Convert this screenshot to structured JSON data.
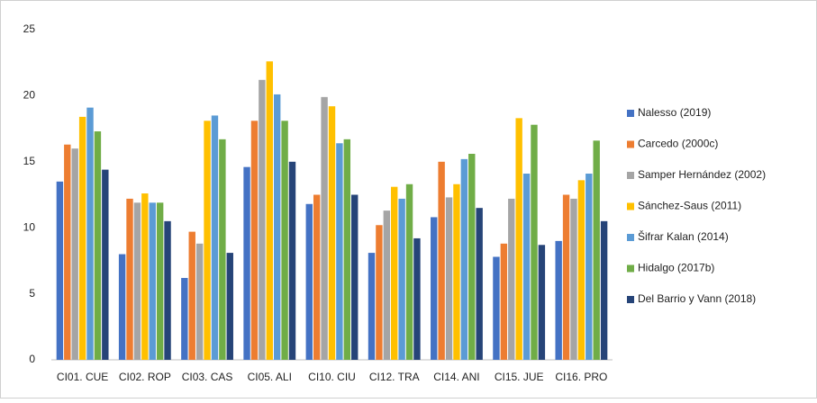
{
  "chart_data": {
    "type": "bar",
    "categories": [
      "CI01. CUE",
      "CI02. ROP",
      "CI03. CAS",
      "CI05. ALI",
      "CI10. CIU",
      "CI12. TRA",
      "CI14. ANI",
      "CI15. JUE",
      "CI16. PRO"
    ],
    "series": [
      {
        "name": "Nalesso (2019)",
        "color": "#4472c4",
        "values": [
          13.5,
          8.0,
          6.2,
          14.6,
          11.8,
          8.1,
          10.8,
          7.8,
          9.0
        ]
      },
      {
        "name": "Carcedo (2000c)",
        "color": "#ed7d31",
        "values": [
          16.3,
          12.2,
          9.7,
          18.1,
          12.5,
          10.2,
          15.0,
          8.8,
          12.5
        ]
      },
      {
        "name": "Samper Hernández  (2002)",
        "color": "#a5a5a5",
        "values": [
          16.0,
          11.9,
          8.8,
          21.2,
          19.9,
          11.3,
          12.3,
          12.2,
          12.2
        ]
      },
      {
        "name": "Sánchez-Saus (2011)",
        "color": "#ffc000",
        "values": [
          18.4,
          12.6,
          18.1,
          22.6,
          19.2,
          13.1,
          13.3,
          18.3,
          13.6
        ]
      },
      {
        "name": "Šifrar Kalan  (2014)",
        "color": "#5b9bd5",
        "values": [
          19.1,
          11.9,
          18.5,
          20.1,
          16.4,
          12.2,
          15.2,
          14.1,
          14.1
        ]
      },
      {
        "name": "Hidalgo  (2017b)",
        "color": "#70ad47",
        "values": [
          17.3,
          11.9,
          16.7,
          18.1,
          16.7,
          13.3,
          15.6,
          17.8,
          16.6
        ]
      },
      {
        "name": "Del Barrio y Vann (2018)",
        "color": "#264478",
        "values": [
          14.4,
          10.5,
          8.1,
          15.0,
          12.5,
          9.2,
          11.5,
          8.7,
          10.5
        ]
      }
    ],
    "ylim": [
      0,
      25
    ],
    "yticks": [
      0,
      5,
      10,
      15,
      20,
      25
    ],
    "grid": false,
    "legend": "right"
  }
}
